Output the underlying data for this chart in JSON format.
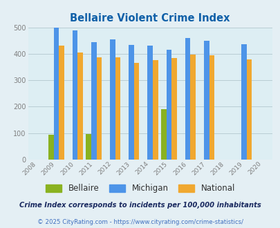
{
  "title": "Bellaire Violent Crime Index",
  "years": [
    2008,
    2009,
    2010,
    2011,
    2012,
    2013,
    2014,
    2015,
    2016,
    2017,
    2018,
    2019,
    2020
  ],
  "bellaire": [
    0,
    93,
    0,
    97,
    0,
    0,
    0,
    190,
    0,
    0,
    0,
    0,
    0
  ],
  "michigan": [
    0,
    500,
    488,
    445,
    455,
    433,
    430,
    415,
    461,
    450,
    0,
    437,
    0
  ],
  "national": [
    0,
    430,
    405,
    387,
    387,
    367,
    376,
    383,
    396,
    394,
    0,
    379,
    0
  ],
  "bellaire_color": "#8ab220",
  "michigan_color": "#4d94e8",
  "national_color": "#f0a830",
  "bg_color": "#e4eff4",
  "plot_bg_color": "#ddeef3",
  "title_color": "#1060a8",
  "legend_label_color": "#303030",
  "footnote_color": "#1a2a60",
  "link_color": "#4070c0",
  "tick_color": "#808080",
  "grid_color": "#b8ccd4",
  "xlim": [
    2008,
    2020
  ],
  "ylim": [
    0,
    500
  ],
  "yticks": [
    0,
    100,
    200,
    300,
    400,
    500
  ],
  "bar_width": 0.28,
  "subtitle": "Crime Index corresponds to incidents per 100,000 inhabitants",
  "copyright": "© 2025 CityRating.com - https://www.cityrating.com/crime-statistics/"
}
